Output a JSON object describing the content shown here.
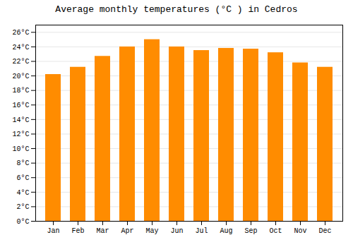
{
  "chart_data": {
    "type": "bar",
    "title": "Average monthly temperatures (°C ) in Cedros",
    "categories": [
      "Jan",
      "Feb",
      "Mar",
      "Apr",
      "May",
      "Jun",
      "Jul",
      "Aug",
      "Sep",
      "Oct",
      "Nov",
      "Dec"
    ],
    "values": [
      20.2,
      21.2,
      22.7,
      24.0,
      25.0,
      24.0,
      23.5,
      23.8,
      23.7,
      23.2,
      21.8,
      21.2
    ],
    "color": "#FF8C00",
    "ylim": [
      0,
      27
    ],
    "yticks": [
      {
        "value": 0,
        "label": "0°C"
      },
      {
        "value": 2,
        "label": "2°C"
      },
      {
        "value": 4,
        "label": "4°C"
      },
      {
        "value": 6,
        "label": "6°C"
      },
      {
        "value": 8,
        "label": "8°C"
      },
      {
        "value": 10,
        "label": "10°C"
      },
      {
        "value": 12,
        "label": "12°C"
      },
      {
        "value": 14,
        "label": "14°C"
      },
      {
        "value": 16,
        "label": "16°C"
      },
      {
        "value": 18,
        "label": "18°C"
      },
      {
        "value": 20,
        "label": "20°C"
      },
      {
        "value": 22,
        "label": "22°C"
      },
      {
        "value": 24,
        "label": "24°C"
      },
      {
        "value": 26,
        "label": "26°C"
      }
    ],
    "grid": true
  }
}
